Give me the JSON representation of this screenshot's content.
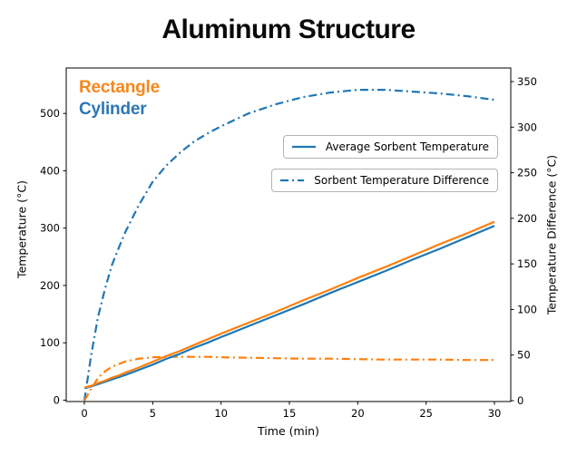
{
  "title": "Aluminum Structure",
  "corner_labels": {
    "rectangle": "Rectangle",
    "cylinder": "Cylinder"
  },
  "colors": {
    "orange_line": "#ff7f0e",
    "blue_line": "#1f77b4",
    "rectangle_label": "#f6871d",
    "cylinder_label": "#2e77b5",
    "axis": "#000000",
    "legend_border": "#b3b3b3"
  },
  "legend": [
    {
      "label": "Average Sorbent Temperature",
      "style": "solid",
      "color": "#1f77b4"
    },
    {
      "label": "Sorbent Temperature Difference",
      "style": "dashdot",
      "color": "#1f77b4"
    }
  ],
  "chart_data": {
    "type": "line",
    "title": "Aluminum Structure",
    "xlabel": "Time (min)",
    "ylabel_left": "Temperature (°C)",
    "ylabel_right": "Temperature Difference (°C)",
    "x_ticks": [
      0,
      5,
      10,
      15,
      20,
      25,
      30
    ],
    "y_left_ticks": [
      0,
      100,
      200,
      300,
      400,
      500
    ],
    "y_right_ticks": [
      0,
      50,
      100,
      150,
      200,
      250,
      300,
      350
    ],
    "xlim": [
      -1.5,
      31.5
    ],
    "ylim_left": [
      0,
      580
    ],
    "ylim_right": [
      0,
      365
    ],
    "grid": false,
    "x": [
      0,
      0.5,
      1,
      1.5,
      2,
      2.5,
      3,
      4,
      5,
      6,
      7,
      8,
      9,
      10,
      12,
      14,
      16,
      18,
      20,
      22,
      24,
      26,
      28,
      30
    ],
    "series": [
      {
        "name": "Cylinder - Sorbent Temperature Difference",
        "axis": "right",
        "style": "dashdot",
        "color": "#1f77b4",
        "values": [
          0,
          50,
          92,
          122,
          148,
          167,
          185,
          215,
          240,
          258,
          272,
          284,
          293,
          301,
          315,
          325,
          333,
          338,
          341,
          341,
          339,
          337,
          334,
          330
        ]
      },
      {
        "name": "Rectangle - Sorbent Temperature Difference",
        "axis": "right",
        "style": "dashdot",
        "color": "#ff7f0e",
        "values": [
          0,
          13,
          25,
          32,
          37,
          40,
          43,
          46,
          47.5,
          48,
          48,
          48,
          48,
          47.5,
          47,
          46.5,
          46,
          46,
          45.5,
          45,
          45,
          45,
          44.5,
          44.5
        ]
      },
      {
        "name": "Cylinder - Average Sorbent Temperature",
        "axis": "left",
        "style": "solid",
        "color": "#1f77b4",
        "values": [
          21,
          24,
          28,
          32,
          36,
          40,
          44,
          53,
          62,
          72,
          81,
          91,
          100,
          110,
          129,
          148,
          167,
          187,
          206,
          225,
          245,
          264,
          284,
          304
        ]
      },
      {
        "name": "Rectangle - Average Sorbent Temperature",
        "axis": "left",
        "style": "solid",
        "color": "#ff7f0e",
        "values": [
          22,
          25,
          30,
          34,
          39,
          43,
          48,
          57,
          67,
          77,
          86,
          96,
          106,
          116,
          135,
          154,
          174,
          193,
          213,
          232,
          252,
          272,
          291,
          311
        ]
      }
    ]
  }
}
